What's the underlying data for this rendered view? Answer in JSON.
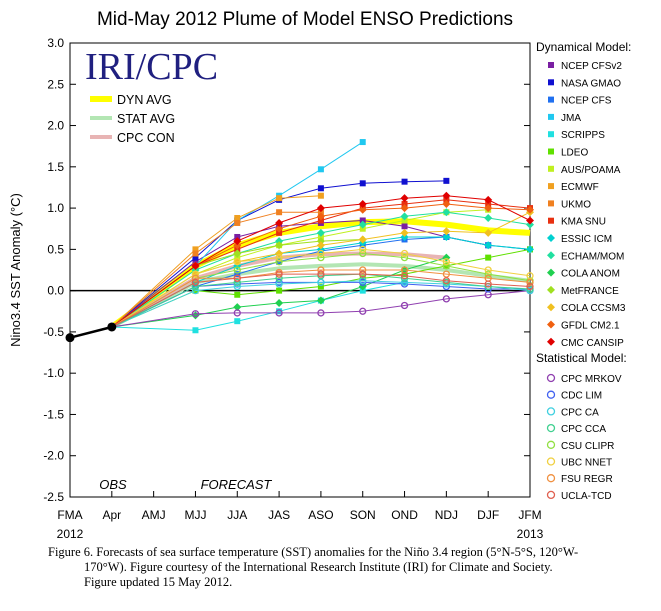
{
  "chart_data": {
    "type": "line",
    "title": "Mid-May 2012 Plume of Model ENSO Predictions",
    "ylabel": "Nino3.4 SST Anomaly (°C)",
    "ylim": [
      -2.5,
      3.0
    ],
    "yticks": [
      "3.0",
      "2.5",
      "2.0",
      "1.5",
      "1.0",
      "0.5",
      "0.0",
      "-0.5",
      "-1.0",
      "-1.5",
      "-2.0",
      "-2.5"
    ],
    "categories": [
      "FMA",
      "Apr",
      "AMJ",
      "MJJ",
      "JJA",
      "JAS",
      "ASO",
      "SON",
      "OND",
      "NDJ",
      "DJF",
      "JFM"
    ],
    "year_labels": [
      {
        "text": "2012",
        "at": "FMA"
      },
      {
        "text": "2013",
        "at": "JFM"
      }
    ],
    "obs_label": "OBS",
    "forecast_label": "FORECAST",
    "brand": "IRI/CPC",
    "observed": [
      -0.57,
      -0.44
    ],
    "averages": [
      {
        "name": "DYN AVG",
        "color": "#ffff00",
        "values": [
          null,
          -0.44,
          null,
          0.3,
          0.55,
          0.7,
          0.78,
          0.83,
          0.84,
          0.8,
          0.73,
          0.7
        ]
      },
      {
        "name": "STAT AVG",
        "color": "#b3e6b3",
        "values": [
          null,
          -0.44,
          null,
          0.1,
          0.2,
          0.27,
          0.3,
          0.32,
          0.3,
          0.25,
          0.18,
          0.12
        ]
      },
      {
        "name": "CPC CON",
        "color": "#e8b4b4",
        "values": [
          null,
          -0.44,
          null,
          0.15,
          0.3,
          0.4,
          0.44,
          0.45,
          0.44,
          0.4,
          null,
          null
        ]
      }
    ],
    "legend_dynamical_title": "Dynamical Model:",
    "legend_statistical_title": "Statistical Model:",
    "series": [
      {
        "name": "NCEP CFSv2",
        "group": "dyn",
        "color": "#7a1fa2",
        "marker": "square",
        "values": [
          null,
          -0.44,
          null,
          0.35,
          0.65,
          0.78,
          0.82,
          0.85,
          0.78,
          0.65,
          0.55,
          null
        ]
      },
      {
        "name": "NASA GMAO",
        "group": "dyn",
        "color": "#1010d0",
        "marker": "square",
        "values": [
          null,
          -0.44,
          null,
          0.4,
          0.85,
          1.1,
          1.24,
          1.3,
          1.32,
          1.33,
          null,
          null
        ]
      },
      {
        "name": "NCEP CFS",
        "group": "dyn",
        "color": "#2070f0",
        "marker": "square",
        "values": [
          null,
          -0.44,
          null,
          0.05,
          0.2,
          0.35,
          0.48,
          0.55,
          0.62,
          0.65,
          0.55,
          0.5
        ]
      },
      {
        "name": "JMA",
        "group": "dyn",
        "color": "#20c8f0",
        "marker": "square",
        "values": [
          null,
          -0.44,
          null,
          0.3,
          0.85,
          1.15,
          1.47,
          1.8,
          null,
          null,
          null,
          null
        ]
      },
      {
        "name": "SCRIPPS",
        "group": "dyn",
        "color": "#20e0e0",
        "marker": "square",
        "values": [
          null,
          -0.44,
          null,
          -0.48,
          -0.37,
          -0.25,
          -0.12,
          0.0,
          0.1,
          null,
          null,
          null
        ]
      },
      {
        "name": "LDEO",
        "group": "dyn",
        "color": "#60e000",
        "marker": "square",
        "values": [
          null,
          -0.44,
          null,
          0.0,
          -0.05,
          0.0,
          0.05,
          0.15,
          0.2,
          0.3,
          0.4,
          0.5
        ]
      },
      {
        "name": "AUS/POAMA",
        "group": "dyn",
        "color": "#c0f020",
        "marker": "square",
        "values": [
          null,
          -0.44,
          null,
          0.2,
          0.4,
          0.55,
          0.65,
          0.75,
          0.85,
          0.95,
          0.98,
          null
        ]
      },
      {
        "name": "ECMWF",
        "group": "dyn",
        "color": "#f0a020",
        "marker": "square",
        "values": [
          null,
          -0.44,
          null,
          0.5,
          0.88,
          1.12,
          1.15,
          null,
          null,
          null,
          null,
          null
        ]
      },
      {
        "name": "UKMO",
        "group": "dyn",
        "color": "#f08020",
        "marker": "square",
        "values": [
          null,
          -0.44,
          null,
          0.45,
          0.82,
          0.95,
          0.95,
          null,
          null,
          null,
          null,
          null
        ]
      },
      {
        "name": "KMA SNU",
        "group": "dyn",
        "color": "#e83010",
        "marker": "square",
        "values": [
          null,
          -0.44,
          null,
          0.3,
          0.5,
          0.7,
          0.85,
          1.0,
          1.05,
          1.1,
          1.05,
          1.0
        ]
      },
      {
        "name": "ESSIC ICM",
        "group": "dyn",
        "color": "#00d0d0",
        "marker": "diamond",
        "values": [
          null,
          -0.44,
          null,
          0.1,
          0.3,
          0.45,
          0.5,
          0.58,
          0.65,
          0.65,
          0.55,
          0.5
        ]
      },
      {
        "name": "ECHAM/MOM",
        "group": "dyn",
        "color": "#20e0a0",
        "marker": "diamond",
        "values": [
          null,
          -0.44,
          null,
          0.25,
          0.45,
          0.6,
          0.7,
          0.8,
          0.9,
          0.95,
          0.88,
          0.8
        ]
      },
      {
        "name": "COLA ANOM",
        "group": "dyn",
        "color": "#20d050",
        "marker": "diamond",
        "values": [
          null,
          -0.44,
          null,
          -0.3,
          -0.2,
          -0.15,
          -0.12,
          0.05,
          0.25,
          0.4,
          null,
          null
        ]
      },
      {
        "name": "MetFRANCE",
        "group": "dyn",
        "color": "#a0e020",
        "marker": "diamond",
        "values": [
          null,
          -0.44,
          null,
          0.3,
          0.45,
          0.55,
          0.6,
          0.62,
          null,
          null,
          null,
          null
        ]
      },
      {
        "name": "COLA CCSM3",
        "group": "dyn",
        "color": "#f0c020",
        "marker": "diamond",
        "values": [
          null,
          -0.44,
          null,
          0.2,
          0.35,
          0.45,
          0.55,
          0.62,
          0.7,
          0.72,
          0.7,
          0.95
        ]
      },
      {
        "name": "GFDL CM2.1",
        "group": "dyn",
        "color": "#f06010",
        "marker": "diamond",
        "values": [
          null,
          -0.44,
          null,
          0.3,
          0.55,
          0.75,
          0.9,
          0.98,
          1.0,
          1.05,
          1.0,
          0.98
        ]
      },
      {
        "name": "CMC CANSIP",
        "group": "dyn",
        "color": "#e00000",
        "marker": "diamond",
        "values": [
          null,
          -0.44,
          null,
          0.3,
          0.6,
          0.82,
          1.0,
          1.05,
          1.12,
          1.15,
          1.1,
          0.85
        ]
      },
      {
        "name": "CPC MRKOV",
        "group": "stat",
        "color": "#9040b0",
        "marker": "circle",
        "values": [
          null,
          -0.44,
          null,
          -0.28,
          -0.27,
          -0.27,
          -0.27,
          -0.25,
          -0.18,
          -0.1,
          -0.05,
          0.0
        ]
      },
      {
        "name": "CDC LIM",
        "group": "stat",
        "color": "#4060f0",
        "marker": "circle",
        "values": [
          null,
          -0.44,
          null,
          0.05,
          0.08,
          0.1,
          0.1,
          0.1,
          0.08,
          0.05,
          0.02,
          0.02
        ]
      },
      {
        "name": "CPC CA",
        "group": "stat",
        "color": "#40d0e0",
        "marker": "circle",
        "values": [
          null,
          -0.44,
          null,
          0.0,
          0.05,
          0.08,
          0.1,
          0.12,
          0.1,
          0.08,
          0.05,
          0.0
        ]
      },
      {
        "name": "CPC CCA",
        "group": "stat",
        "color": "#40d090",
        "marker": "circle",
        "values": [
          null,
          -0.44,
          null,
          0.05,
          0.1,
          0.15,
          0.18,
          0.2,
          0.15,
          0.1,
          0.05,
          0.02
        ]
      },
      {
        "name": "CSU CLIPR",
        "group": "stat",
        "color": "#90e040",
        "marker": "circle",
        "values": [
          null,
          -0.44,
          null,
          0.15,
          0.25,
          0.35,
          0.4,
          0.45,
          0.4,
          0.3,
          0.2,
          0.12
        ]
      },
      {
        "name": "UBC NNET",
        "group": "stat",
        "color": "#f0d040",
        "marker": "circle",
        "values": [
          null,
          -0.44,
          null,
          0.2,
          0.35,
          0.4,
          0.45,
          0.5,
          0.45,
          0.35,
          0.25,
          0.18
        ]
      },
      {
        "name": "FSU REGR",
        "group": "stat",
        "color": "#f09040",
        "marker": "circle",
        "values": [
          null,
          -0.44,
          null,
          0.15,
          0.15,
          0.22,
          0.25,
          0.25,
          0.25,
          0.2,
          0.15,
          0.1
        ]
      },
      {
        "name": "UCLA-TCD",
        "group": "stat",
        "color": "#e06050",
        "marker": "circle",
        "values": [
          null,
          -0.44,
          null,
          0.1,
          0.15,
          0.2,
          0.2,
          0.2,
          0.18,
          0.12,
          0.08,
          0.05
        ]
      }
    ]
  },
  "caption": {
    "line1": "Figure 6. Forecasts of sea surface temperature (SST) anomalies for the Niño 3.4 region (5°N-5°S, 120°W-",
    "line2": "170°W).  Figure courtesy of the International Research Institute (IRI) for Climate and Society.",
    "line3": "Figure updated 15 May 2012."
  }
}
